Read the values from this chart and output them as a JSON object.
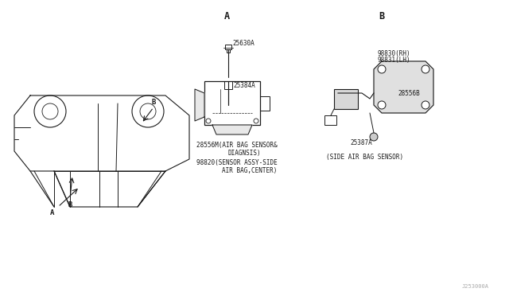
{
  "bg_color": "#ffffff",
  "border_color": "#000000",
  "line_color": "#1a1a1a",
  "fig_width": 6.4,
  "fig_height": 3.72,
  "dpi": 100,
  "title": "",
  "section_A_label": "A",
  "section_B_label": "B",
  "part_number_footer": "J253000A",
  "labels": {
    "A_arrow_label": "A",
    "B_arrow_label_top": "B",
    "B_arrow_label_bottom": "B",
    "part_25630A": "25630A",
    "part_25384A": "25384A",
    "part_28556M": "28556M(AIR BAG SENSOR&\n          DIAGNSIS)",
    "part_98820": "98820(SENSOR ASSY-SIDE\n       AIR BAG,CENTER)",
    "part_98830": "98830(RH)",
    "part_98831": "98831(LH)",
    "part_28556B": "28556B",
    "part_25387A": "25387A",
    "side_label": "(SIDE AIR BAG SENSOR)"
  },
  "font_size_small": 5.5,
  "font_size_medium": 6.5,
  "font_size_large": 8.5,
  "font_family": "monospace"
}
